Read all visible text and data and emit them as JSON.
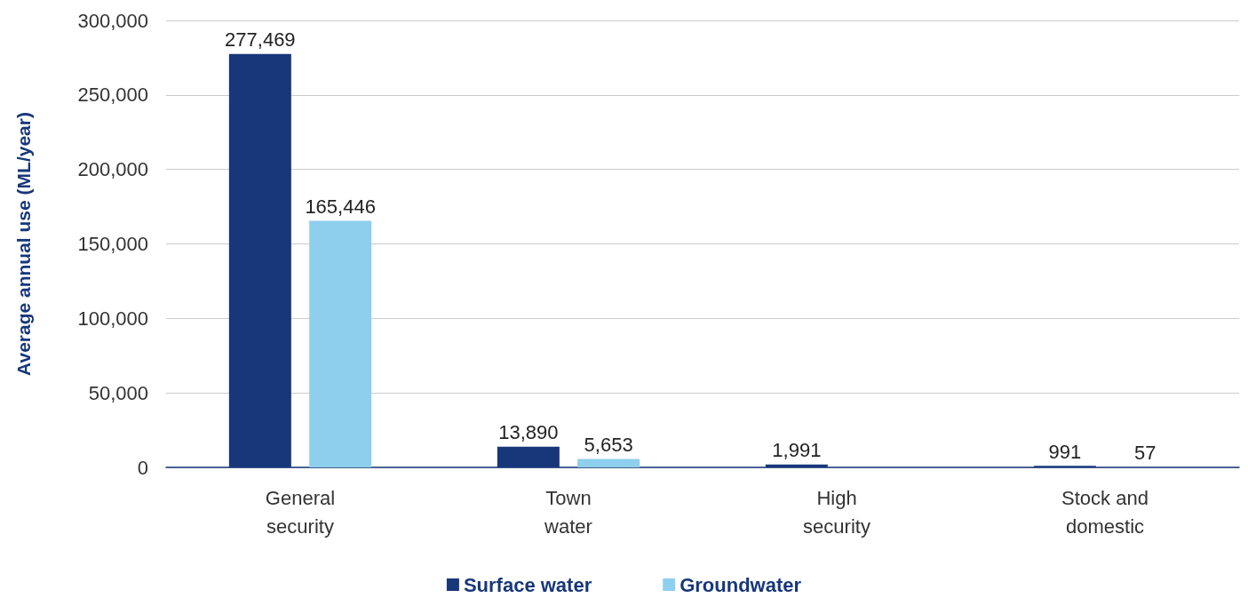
{
  "chart_data": {
    "type": "bar",
    "ylabel": "Average annual use (ML/year)",
    "categories": [
      "General\nsecurity",
      "Town\nwater",
      "High\nsecurity",
      "Stock and\ndomestic"
    ],
    "series": [
      {
        "name": "Surface water",
        "color": "#17377a",
        "values": [
          277469,
          13890,
          1991,
          991
        ],
        "value_labels": [
          "277,469",
          "13,890",
          "1,991",
          "991"
        ]
      },
      {
        "name": "Groundwater",
        "color": "#8ecfee",
        "values": [
          165446,
          5653,
          null,
          57
        ],
        "value_labels": [
          "165,446",
          "5,653",
          null,
          "57"
        ]
      }
    ],
    "ylim": [
      0,
      300000
    ],
    "yticks": [
      0,
      {
        "value": 50000,
        "label": "50,000"
      },
      {
        "value": 100000,
        "label": "100,000"
      },
      {
        "value": 150000,
        "label": "150,000"
      },
      {
        "value": 200000,
        "label": "200,000"
      },
      {
        "value": 250000,
        "label": "250,000"
      },
      {
        "value": 300000,
        "label": "300,000"
      }
    ],
    "grid": "y",
    "legend": "bottom"
  }
}
